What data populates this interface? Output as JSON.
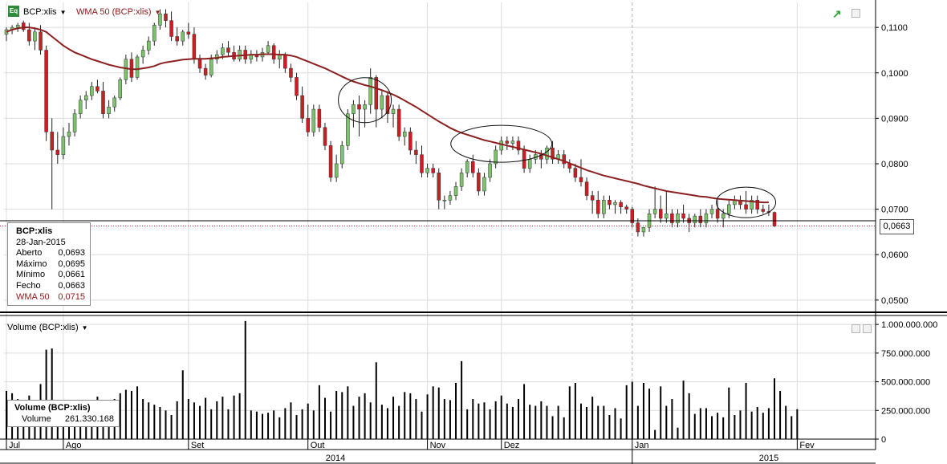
{
  "header": {
    "badge": "Eq",
    "price_series": "BCP:xlis",
    "indicator": "WMA 50 (BCP:xlis)",
    "volume_series": "Volume (BCP:xlis)"
  },
  "price_info": {
    "title": "BCP:xlis",
    "date": "28-Jan-2015",
    "rows": [
      {
        "label": "Aberto",
        "value": "0,0693"
      },
      {
        "label": "Máximo",
        "value": "0,0695"
      },
      {
        "label": "Mínimo",
        "value": "0,0661"
      },
      {
        "label": "Fecho",
        "value": "0,0663"
      }
    ],
    "wma_label": "WMA 50",
    "wma_value": "0,0715"
  },
  "volume_info": {
    "title": "Volume (BCP:xlis)",
    "label": "Volume",
    "value": "261.330.168"
  },
  "last_price_tag": "0,0663",
  "colors": {
    "up": "#7dc36b",
    "down": "#cc1e22",
    "wma": "#8b2020",
    "volume": "#000000",
    "grid": "#dcdcdc"
  },
  "chart_data": {
    "type": "candlestick",
    "currency_axis": {
      "ticks": [
        0.05,
        0.06,
        0.07,
        0.08,
        0.09,
        0.1,
        0.11
      ],
      "tick_labels": [
        "0,0500",
        "0,0600",
        "0,0700",
        "0,0800",
        "0,0900",
        "0,1000",
        "0,1100"
      ],
      "ylim": [
        0.0475,
        0.1155
      ]
    },
    "volume_axis": {
      "ticks": [
        0,
        250000000,
        500000000,
        750000000,
        1000000000
      ],
      "tick_labels": [
        "0",
        "250.000.000",
        "500.000.000",
        "750.000.000",
        "1.000.000.000"
      ],
      "ylim": [
        0,
        1050000000
      ]
    },
    "month_labels": [
      "Jul",
      "Ago",
      "Set",
      "Out",
      "Nov",
      "Dez",
      "Jan",
      "Fev"
    ],
    "year_labels": [
      "2014",
      "2015"
    ],
    "candles": [
      [
        0.1085,
        0.11,
        0.107,
        0.1095
      ],
      [
        0.1095,
        0.1105,
        0.1085,
        0.11
      ],
      [
        0.11,
        0.111,
        0.109,
        0.1105
      ],
      [
        0.111,
        0.1115,
        0.109,
        0.1095
      ],
      [
        0.1095,
        0.111,
        0.106,
        0.107
      ],
      [
        0.107,
        0.11,
        0.105,
        0.109
      ],
      [
        0.109,
        0.1105,
        0.104,
        0.105
      ],
      [
        0.105,
        0.106,
        0.085,
        0.087
      ],
      [
        0.087,
        0.09,
        0.07,
        0.083
      ],
      [
        0.083,
        0.087,
        0.08,
        0.082
      ],
      [
        0.082,
        0.088,
        0.081,
        0.086
      ],
      [
        0.086,
        0.089,
        0.084,
        0.087
      ],
      [
        0.087,
        0.092,
        0.086,
        0.091
      ],
      [
        0.091,
        0.095,
        0.09,
        0.094
      ],
      [
        0.094,
        0.096,
        0.092,
        0.095
      ],
      [
        0.095,
        0.098,
        0.094,
        0.097
      ],
      [
        0.097,
        0.0985,
        0.0955,
        0.096
      ],
      [
        0.096,
        0.098,
        0.09,
        0.091
      ],
      [
        0.091,
        0.094,
        0.09,
        0.0925
      ],
      [
        0.0925,
        0.095,
        0.0915,
        0.0945
      ],
      [
        0.0945,
        0.099,
        0.094,
        0.0985
      ],
      [
        0.0985,
        0.104,
        0.0975,
        0.103
      ],
      [
        0.103,
        0.1045,
        0.098,
        0.099
      ],
      [
        0.099,
        0.104,
        0.0985,
        0.1035
      ],
      [
        0.1035,
        0.106,
        0.102,
        0.105
      ],
      [
        0.105,
        0.108,
        0.104,
        0.107
      ],
      [
        0.107,
        0.111,
        0.106,
        0.1105
      ],
      [
        0.1105,
        0.114,
        0.1095,
        0.113
      ],
      [
        0.113,
        0.114,
        0.11,
        0.1115
      ],
      [
        0.1115,
        0.1135,
        0.107,
        0.108
      ],
      [
        0.108,
        0.11,
        0.106,
        0.107
      ],
      [
        0.107,
        0.1095,
        0.106,
        0.109
      ],
      [
        0.109,
        0.111,
        0.1075,
        0.1085
      ],
      [
        0.1085,
        0.11,
        0.102,
        0.103
      ],
      [
        0.103,
        0.104,
        0.1,
        0.101
      ],
      [
        0.101,
        0.102,
        0.0985,
        0.0995
      ],
      [
        0.0995,
        0.104,
        0.099,
        0.103
      ],
      [
        0.103,
        0.105,
        0.102,
        0.104
      ],
      [
        0.104,
        0.1065,
        0.103,
        0.1055
      ],
      [
        0.1055,
        0.107,
        0.1035,
        0.1045
      ],
      [
        0.1045,
        0.106,
        0.1025,
        0.103
      ],
      [
        0.103,
        0.106,
        0.1025,
        0.105
      ],
      [
        0.105,
        0.106,
        0.102,
        0.103
      ],
      [
        0.103,
        0.105,
        0.102,
        0.104
      ],
      [
        0.104,
        0.105,
        0.1025,
        0.1035
      ],
      [
        0.1035,
        0.1055,
        0.1025,
        0.1045
      ],
      [
        0.1045,
        0.107,
        0.104,
        0.106
      ],
      [
        0.106,
        0.1065,
        0.102,
        0.103
      ],
      [
        0.103,
        0.105,
        0.101,
        0.104
      ],
      [
        0.104,
        0.1045,
        0.1,
        0.101
      ],
      [
        0.101,
        0.102,
        0.098,
        0.099
      ],
      [
        0.099,
        0.1,
        0.094,
        0.095
      ],
      [
        0.095,
        0.097,
        0.089,
        0.09
      ],
      [
        0.09,
        0.093,
        0.086,
        0.087
      ],
      [
        0.087,
        0.093,
        0.086,
        0.092
      ],
      [
        0.092,
        0.093,
        0.087,
        0.088
      ],
      [
        0.088,
        0.089,
        0.083,
        0.084
      ],
      [
        0.084,
        0.085,
        0.076,
        0.077
      ],
      [
        0.077,
        0.082,
        0.076,
        0.08
      ],
      [
        0.08,
        0.085,
        0.079,
        0.084
      ],
      [
        0.084,
        0.092,
        0.083,
        0.091
      ],
      [
        0.091,
        0.094,
        0.088,
        0.093
      ],
      [
        0.093,
        0.095,
        0.086,
        0.092
      ],
      [
        0.092,
        0.094,
        0.088,
        0.093
      ],
      [
        0.093,
        0.101,
        0.091,
        0.099
      ],
      [
        0.099,
        0.0995,
        0.088,
        0.092
      ],
      [
        0.092,
        0.096,
        0.09,
        0.095
      ],
      [
        0.095,
        0.096,
        0.089,
        0.091
      ],
      [
        0.091,
        0.093,
        0.088,
        0.092
      ],
      [
        0.092,
        0.093,
        0.085,
        0.086
      ],
      [
        0.086,
        0.088,
        0.084,
        0.087
      ],
      [
        0.087,
        0.088,
        0.082,
        0.083
      ],
      [
        0.083,
        0.085,
        0.08,
        0.082
      ],
      [
        0.082,
        0.084,
        0.077,
        0.078
      ],
      [
        0.078,
        0.08,
        0.077,
        0.079
      ],
      [
        0.079,
        0.08,
        0.077,
        0.078
      ],
      [
        0.078,
        0.079,
        0.07,
        0.072
      ],
      [
        0.072,
        0.073,
        0.07,
        0.072
      ],
      [
        0.072,
        0.074,
        0.071,
        0.073
      ],
      [
        0.073,
        0.076,
        0.072,
        0.075
      ],
      [
        0.075,
        0.079,
        0.074,
        0.078
      ],
      [
        0.078,
        0.081,
        0.077,
        0.0805
      ],
      [
        0.0805,
        0.082,
        0.077,
        0.078
      ],
      [
        0.078,
        0.079,
        0.073,
        0.074
      ],
      [
        0.074,
        0.078,
        0.073,
        0.077
      ],
      [
        0.077,
        0.081,
        0.076,
        0.08
      ],
      [
        0.08,
        0.084,
        0.079,
        0.083
      ],
      [
        0.083,
        0.086,
        0.082,
        0.085
      ],
      [
        0.085,
        0.086,
        0.083,
        0.0845
      ],
      [
        0.0845,
        0.086,
        0.083,
        0.085
      ],
      [
        0.085,
        0.086,
        0.082,
        0.083
      ],
      [
        0.083,
        0.084,
        0.078,
        0.079
      ],
      [
        0.079,
        0.082,
        0.078,
        0.081
      ],
      [
        0.081,
        0.083,
        0.08,
        0.082
      ],
      [
        0.082,
        0.083,
        0.079,
        0.081
      ],
      [
        0.081,
        0.084,
        0.08,
        0.0835
      ],
      [
        0.0835,
        0.085,
        0.08,
        0.081
      ],
      [
        0.081,
        0.083,
        0.08,
        0.082
      ],
      [
        0.082,
        0.083,
        0.079,
        0.08
      ],
      [
        0.08,
        0.081,
        0.078,
        0.079
      ],
      [
        0.079,
        0.08,
        0.076,
        0.077
      ],
      [
        0.077,
        0.081,
        0.075,
        0.076
      ],
      [
        0.076,
        0.077,
        0.072,
        0.073
      ],
      [
        0.073,
        0.074,
        0.069,
        0.072
      ],
      [
        0.072,
        0.074,
        0.068,
        0.069
      ],
      [
        0.069,
        0.073,
        0.068,
        0.072
      ],
      [
        0.072,
        0.073,
        0.07,
        0.071
      ],
      [
        0.071,
        0.072,
        0.069,
        0.0715
      ],
      [
        0.0715,
        0.072,
        0.069,
        0.0705
      ],
      [
        0.0705,
        0.071,
        0.069,
        0.07
      ],
      [
        0.07,
        0.0705,
        0.066,
        0.067
      ],
      [
        0.067,
        0.068,
        0.064,
        0.065
      ],
      [
        0.065,
        0.066,
        0.064,
        0.066
      ],
      [
        0.066,
        0.07,
        0.065,
        0.069
      ],
      [
        0.069,
        0.075,
        0.068,
        0.07
      ],
      [
        0.07,
        0.073,
        0.067,
        0.068
      ],
      [
        0.068,
        0.074,
        0.067,
        0.069
      ],
      [
        0.069,
        0.07,
        0.066,
        0.067
      ],
      [
        0.067,
        0.07,
        0.066,
        0.069
      ],
      [
        0.069,
        0.071,
        0.067,
        0.068
      ],
      [
        0.068,
        0.069,
        0.065,
        0.067
      ],
      [
        0.067,
        0.069,
        0.066,
        0.0685
      ],
      [
        0.0685,
        0.07,
        0.066,
        0.067
      ],
      [
        0.067,
        0.07,
        0.066,
        0.069
      ],
      [
        0.069,
        0.071,
        0.068,
        0.07
      ],
      [
        0.07,
        0.072,
        0.067,
        0.068
      ],
      [
        0.068,
        0.07,
        0.066,
        0.069
      ],
      [
        0.069,
        0.072,
        0.068,
        0.071
      ],
      [
        0.071,
        0.073,
        0.07,
        0.072
      ],
      [
        0.072,
        0.073,
        0.07,
        0.071
      ],
      [
        0.071,
        0.074,
        0.069,
        0.07
      ],
      [
        0.07,
        0.073,
        0.069,
        0.072
      ],
      [
        0.072,
        0.073,
        0.069,
        0.07
      ],
      [
        0.07,
        0.071,
        0.069,
        0.0695
      ],
      [
        0.0695,
        0.071,
        0.0685,
        0.0693
      ],
      [
        0.0693,
        0.0695,
        0.0661,
        0.0663
      ]
    ],
    "wma_50": [
      0.109,
      0.1095,
      0.1098,
      0.11,
      0.11,
      0.1098,
      0.1095,
      0.109,
      0.108,
      0.107,
      0.106,
      0.1052,
      0.1045,
      0.104,
      0.1035,
      0.103,
      0.1026,
      0.1022,
      0.1018,
      0.1015,
      0.1012,
      0.101,
      0.1008,
      0.1008,
      0.101,
      0.1012,
      0.1015,
      0.102,
      0.1023,
      0.1025,
      0.1027,
      0.1029,
      0.103,
      0.1031,
      0.1031,
      0.1031,
      0.1032,
      0.1033,
      0.1035,
      0.1036,
      0.1037,
      0.1038,
      0.1039,
      0.104,
      0.104,
      0.1041,
      0.1041,
      0.1041,
      0.104,
      0.104,
      0.1038,
      0.1035,
      0.103,
      0.1025,
      0.102,
      0.1015,
      0.101,
      0.1004,
      0.0998,
      0.0992,
      0.0986,
      0.0981,
      0.0977,
      0.0973,
      0.097,
      0.0966,
      0.0962,
      0.0957,
      0.0952,
      0.0946,
      0.0939,
      0.0932,
      0.0925,
      0.0917,
      0.0909,
      0.0901,
      0.0893,
      0.0886,
      0.0879,
      0.0873,
      0.0868,
      0.0864,
      0.086,
      0.0856,
      0.0852,
      0.0849,
      0.0846,
      0.0843,
      0.084,
      0.0837,
      0.0834,
      0.0831,
      0.0828,
      0.0825,
      0.0822,
      0.0818,
      0.0814,
      0.081,
      0.0806,
      0.0801,
      0.0796,
      0.0791,
      0.0786,
      0.0782,
      0.0778,
      0.0774,
      0.0771,
      0.0768,
      0.0765,
      0.0762,
      0.0759,
      0.0756,
      0.0752,
      0.0749,
      0.0746,
      0.0743,
      0.074,
      0.0738,
      0.0736,
      0.0734,
      0.0732,
      0.073,
      0.0728,
      0.0727,
      0.0725,
      0.0723,
      0.0722,
      0.0721,
      0.072,
      0.0719,
      0.0718,
      0.0717,
      0.0716,
      0.0715,
      0.0715
    ],
    "volume": [
      420,
      400,
      350,
      330,
      380,
      290,
      480,
      780,
      790,
      310,
      300,
      280,
      260,
      290,
      260,
      340,
      370,
      300,
      330,
      350,
      400,
      430,
      420,
      460,
      350,
      320,
      300,
      280,
      250,
      210,
      330,
      600,
      350,
      320,
      290,
      360,
      260,
      330,
      370,
      260,
      380,
      400,
      1030,
      250,
      240,
      220,
      230,
      250,
      190,
      270,
      320,
      210,
      260,
      310,
      250,
      470,
      360,
      240,
      420,
      410,
      460,
      290,
      370,
      400,
      320,
      670,
      300,
      270,
      370,
      290,
      410,
      400,
      350,
      240,
      390,
      460,
      450,
      350,
      340,
      490,
      680,
      260,
      350,
      310,
      320,
      260,
      330,
      380,
      310,
      280,
      350,
      480,
      300,
      290,
      330,
      290,
      200,
      290,
      190,
      460,
      490,
      310,
      280,
      370,
      290,
      290,
      210,
      270,
      180,
      470,
      500,
      290,
      490,
      440,
      80,
      460,
      290,
      350,
      100,
      510,
      400,
      220,
      270,
      270,
      200,
      230,
      190,
      450,
      210,
      250,
      490,
      240,
      280,
      230,
      270,
      530,
      420,
      290,
      200,
      261
    ],
    "month_ticks_index": [
      0,
      10,
      32,
      53,
      74,
      87,
      110,
      139
    ],
    "circles": [
      {
        "center_index": 63,
        "center_price": 0.094
      },
      {
        "center_index": 87,
        "center_price": 0.0844
      },
      {
        "center_index": 130,
        "center_price": 0.0715
      }
    ]
  }
}
